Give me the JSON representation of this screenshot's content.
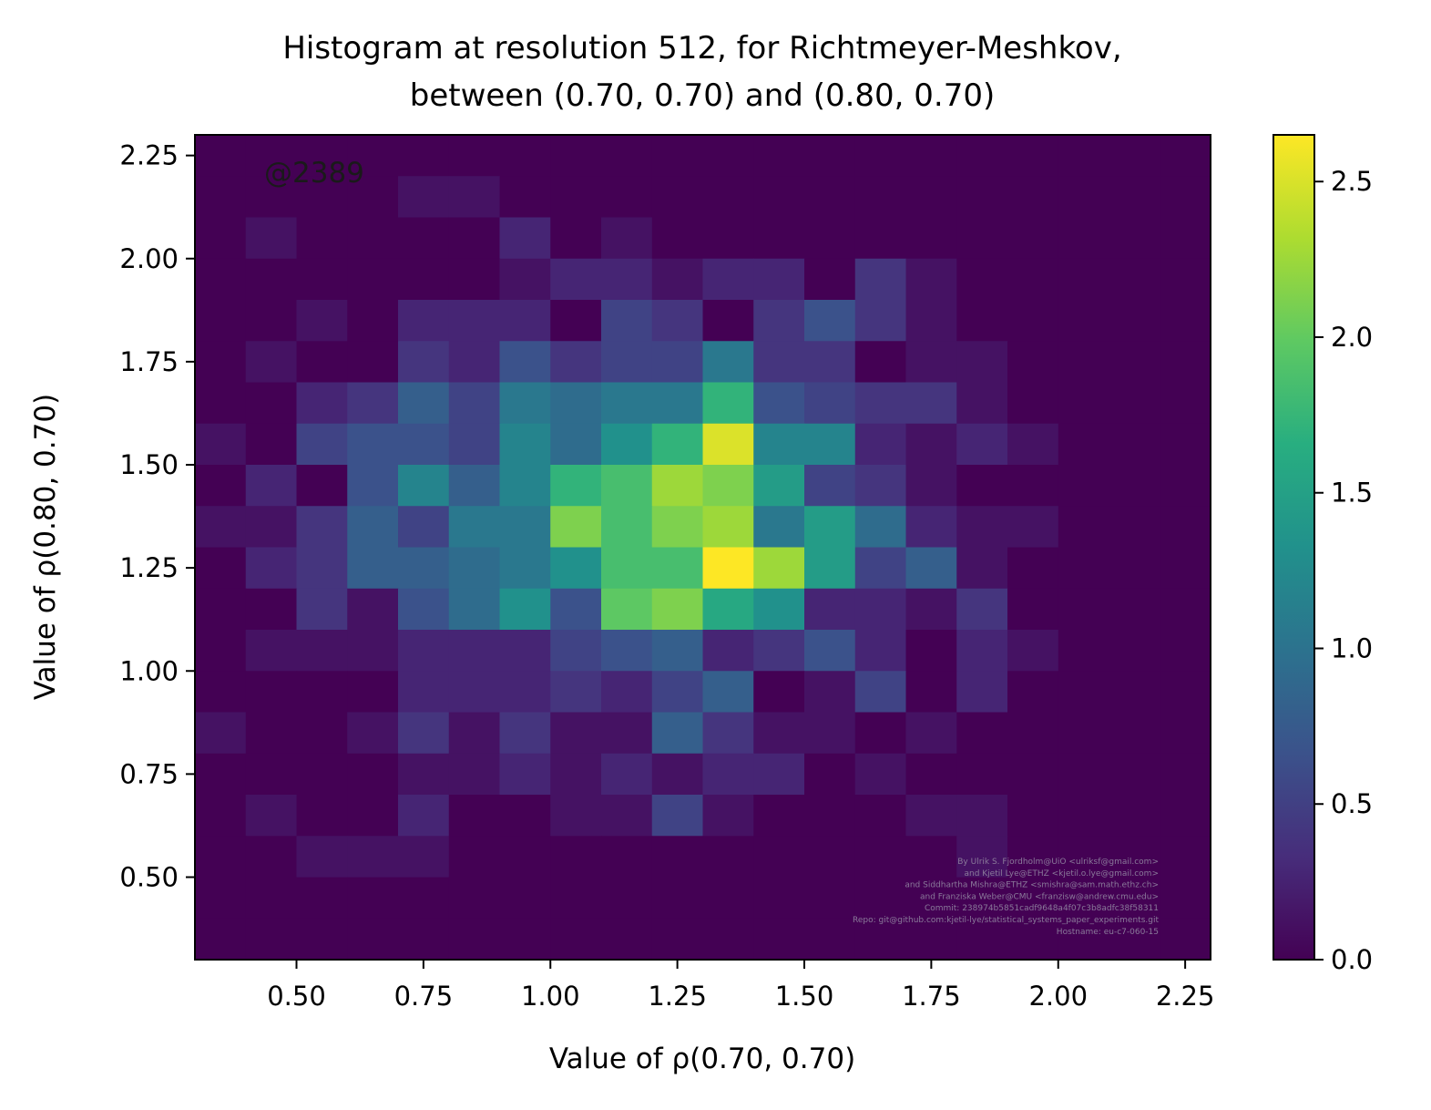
{
  "chart_data": {
    "type": "heatmap",
    "title_lines": [
      "Histogram at resolution 512, for Richtmeyer-Meshkov,",
      "between (0.70, 0.70) and (0.80, 0.70)"
    ],
    "xlabel": "Value of ρ(0.70, 0.70)",
    "ylabel": "Value of ρ(0.80, 0.70)",
    "xlim": [
      0.3,
      2.3
    ],
    "ylim": [
      0.3,
      2.3
    ],
    "bin_width": 0.1,
    "x_bin_start": 0.3,
    "y_bin_start": 0.3,
    "colormap": "viridis",
    "color_range": [
      0.0,
      2.65
    ],
    "xticks": [
      "0.50",
      "0.75",
      "1.00",
      "1.25",
      "1.50",
      "1.75",
      "2.00",
      "2.25"
    ],
    "yticks": [
      "0.50",
      "0.75",
      "1.00",
      "1.25",
      "1.50",
      "1.75",
      "2.00",
      "2.25"
    ],
    "colorbar_ticks": [
      "0.0",
      "0.5",
      "1.0",
      "1.5",
      "2.0",
      "2.5"
    ],
    "annotation": "@2389",
    "credit_lines": [
      "By Ulrik S. Fjordholm@UiO <ulriksf@gmail.com>",
      "and Kjetil Lye@ETHZ <kjetil.o.lye@gmail.com>",
      "and Siddhartha Mishra@ETHZ <smishra@sam.math.ethz.ch>",
      "and Franziska Weber@CMU <franzisw@andrew.cmu.edu>",
      "Commit: 238974b5851cadf9648a4f07c3b8adfc38f58311",
      "Repo: git@github.com:kjetil-lye/statistical_systems_paper_experiments.git",
      "Hostname: eu-c7-060-15"
    ],
    "values_note": "rows ordered from top (y bin 2.2-2.3) to bottom (y bin 0.3-0.4); columns from x bin 0.3-0.4 to 2.2-2.3",
    "values": [
      [
        0,
        0,
        0,
        0,
        0,
        0,
        0,
        0,
        0,
        0,
        0,
        0,
        0,
        0,
        0,
        0,
        0,
        0,
        0,
        0
      ],
      [
        0,
        0,
        0,
        0,
        0.13,
        0.13,
        0,
        0,
        0,
        0,
        0,
        0,
        0,
        0,
        0,
        0,
        0,
        0,
        0,
        0
      ],
      [
        0,
        0.13,
        0,
        0,
        0,
        0,
        0.27,
        0,
        0.13,
        0,
        0,
        0,
        0,
        0,
        0,
        0,
        0,
        0,
        0,
        0
      ],
      [
        0,
        0,
        0,
        0,
        0,
        0,
        0.13,
        0.27,
        0.27,
        0.13,
        0.27,
        0.27,
        0,
        0.4,
        0.13,
        0,
        0,
        0,
        0,
        0
      ],
      [
        0,
        0,
        0.13,
        0,
        0.27,
        0.27,
        0.27,
        0,
        0.53,
        0.4,
        0,
        0.4,
        0.66,
        0.4,
        0.13,
        0,
        0,
        0,
        0,
        0
      ],
      [
        0,
        0.13,
        0,
        0,
        0.4,
        0.27,
        0.66,
        0.4,
        0.53,
        0.53,
        1.06,
        0.4,
        0.4,
        0,
        0.13,
        0.13,
        0,
        0,
        0,
        0
      ],
      [
        0,
        0,
        0.27,
        0.4,
        0.8,
        0.53,
        1.06,
        0.93,
        1.06,
        1.06,
        1.72,
        0.66,
        0.53,
        0.4,
        0.4,
        0.13,
        0,
        0,
        0,
        0
      ],
      [
        0.13,
        0,
        0.53,
        0.66,
        0.66,
        0.53,
        1.19,
        0.93,
        1.32,
        1.72,
        2.51,
        1.19,
        1.19,
        0.27,
        0.13,
        0.27,
        0.13,
        0,
        0,
        0
      ],
      [
        0,
        0.27,
        0,
        0.66,
        1.19,
        0.8,
        1.19,
        1.72,
        1.85,
        2.25,
        2.12,
        1.45,
        0.53,
        0.4,
        0.13,
        0,
        0,
        0,
        0,
        0
      ],
      [
        0.13,
        0.13,
        0.4,
        0.8,
        0.53,
        1.06,
        1.06,
        2.12,
        1.85,
        2.12,
        2.25,
        1.06,
        1.45,
        0.93,
        0.27,
        0.13,
        0.13,
        0,
        0,
        0
      ],
      [
        0,
        0.27,
        0.4,
        0.8,
        0.8,
        0.93,
        1.06,
        1.32,
        1.85,
        1.85,
        2.65,
        2.25,
        1.45,
        0.53,
        0.8,
        0.13,
        0,
        0,
        0,
        0
      ],
      [
        0,
        0,
        0.4,
        0.13,
        0.66,
        0.93,
        1.32,
        0.66,
        1.98,
        2.12,
        1.59,
        1.32,
        0.27,
        0.27,
        0.13,
        0.4,
        0,
        0,
        0,
        0
      ],
      [
        0,
        0.13,
        0.13,
        0.13,
        0.27,
        0.27,
        0.27,
        0.53,
        0.66,
        0.8,
        0.27,
        0.4,
        0.66,
        0.27,
        0,
        0.27,
        0.13,
        0,
        0,
        0
      ],
      [
        0,
        0,
        0,
        0,
        0.27,
        0.27,
        0.27,
        0.4,
        0.27,
        0.53,
        0.8,
        0,
        0.13,
        0.53,
        0,
        0.27,
        0,
        0,
        0,
        0
      ],
      [
        0.13,
        0,
        0,
        0.13,
        0.4,
        0.13,
        0.4,
        0.13,
        0.13,
        0.8,
        0.4,
        0.13,
        0.13,
        0,
        0.13,
        0,
        0,
        0,
        0,
        0
      ],
      [
        0,
        0,
        0,
        0,
        0.13,
        0.13,
        0.27,
        0.13,
        0.27,
        0.13,
        0.27,
        0.27,
        0,
        0.13,
        0,
        0,
        0,
        0,
        0,
        0
      ],
      [
        0,
        0.13,
        0,
        0,
        0.27,
        0,
        0,
        0.13,
        0.13,
        0.53,
        0.13,
        0,
        0,
        0,
        0.13,
        0.13,
        0,
        0,
        0,
        0
      ],
      [
        0,
        0,
        0.13,
        0.13,
        0.13,
        0,
        0,
        0,
        0,
        0,
        0,
        0,
        0,
        0,
        0,
        0.13,
        0,
        0,
        0,
        0
      ],
      [
        0,
        0,
        0,
        0,
        0,
        0,
        0,
        0,
        0,
        0,
        0,
        0,
        0,
        0,
        0,
        0,
        0,
        0,
        0,
        0
      ],
      [
        0,
        0,
        0,
        0,
        0,
        0,
        0,
        0,
        0,
        0,
        0,
        0,
        0,
        0,
        0,
        0,
        0,
        0,
        0,
        0
      ]
    ]
  }
}
